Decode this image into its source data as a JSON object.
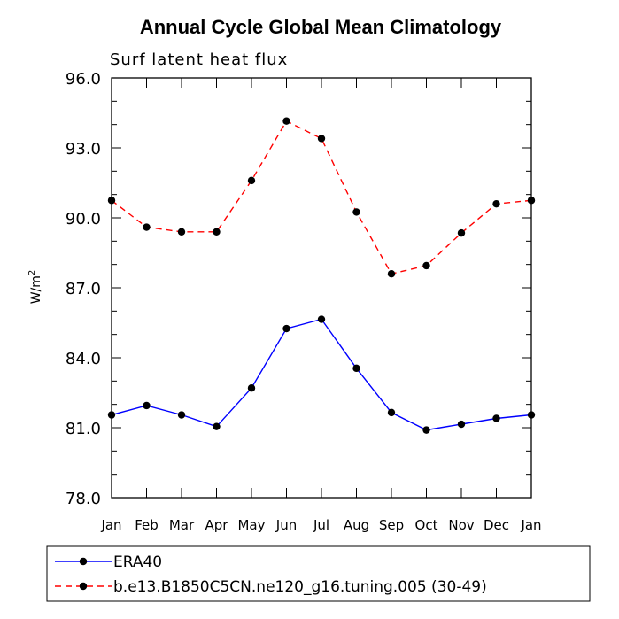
{
  "chart_data": {
    "type": "line",
    "title": "Annual Cycle Global Mean Climatology",
    "subtitle": "Surf latent heat flux",
    "ylabel_base": "W/m",
    "ylabel_sup": "2",
    "ylim": [
      78.0,
      96.0
    ],
    "yticks": [
      "78.0",
      "81.0",
      "84.0",
      "87.0",
      "90.0",
      "93.0",
      "96.0"
    ],
    "categories": [
      "Jan",
      "Feb",
      "Mar",
      "Apr",
      "May",
      "Jun",
      "Jul",
      "Aug",
      "Sep",
      "Oct",
      "Nov",
      "Dec",
      "Jan"
    ],
    "grid": false,
    "legend_position": "bottom",
    "series": [
      {
        "name": "ERA40",
        "color": "#0000ff",
        "dash": "solid",
        "marker": "filled-circle",
        "values": [
          81.55,
          81.95,
          81.55,
          81.05,
          82.7,
          85.25,
          85.65,
          83.55,
          81.65,
          80.9,
          81.15,
          81.4,
          81.55
        ]
      },
      {
        "name": "b.e13.B1850C5CN.ne120_g16.tuning.005 (30-49)",
        "color": "#ff0000",
        "dash": "dashed",
        "marker": "filled-circle",
        "values": [
          90.75,
          89.6,
          89.4,
          89.4,
          91.6,
          94.15,
          93.4,
          90.25,
          87.6,
          87.95,
          89.35,
          90.6,
          90.75
        ]
      }
    ]
  }
}
